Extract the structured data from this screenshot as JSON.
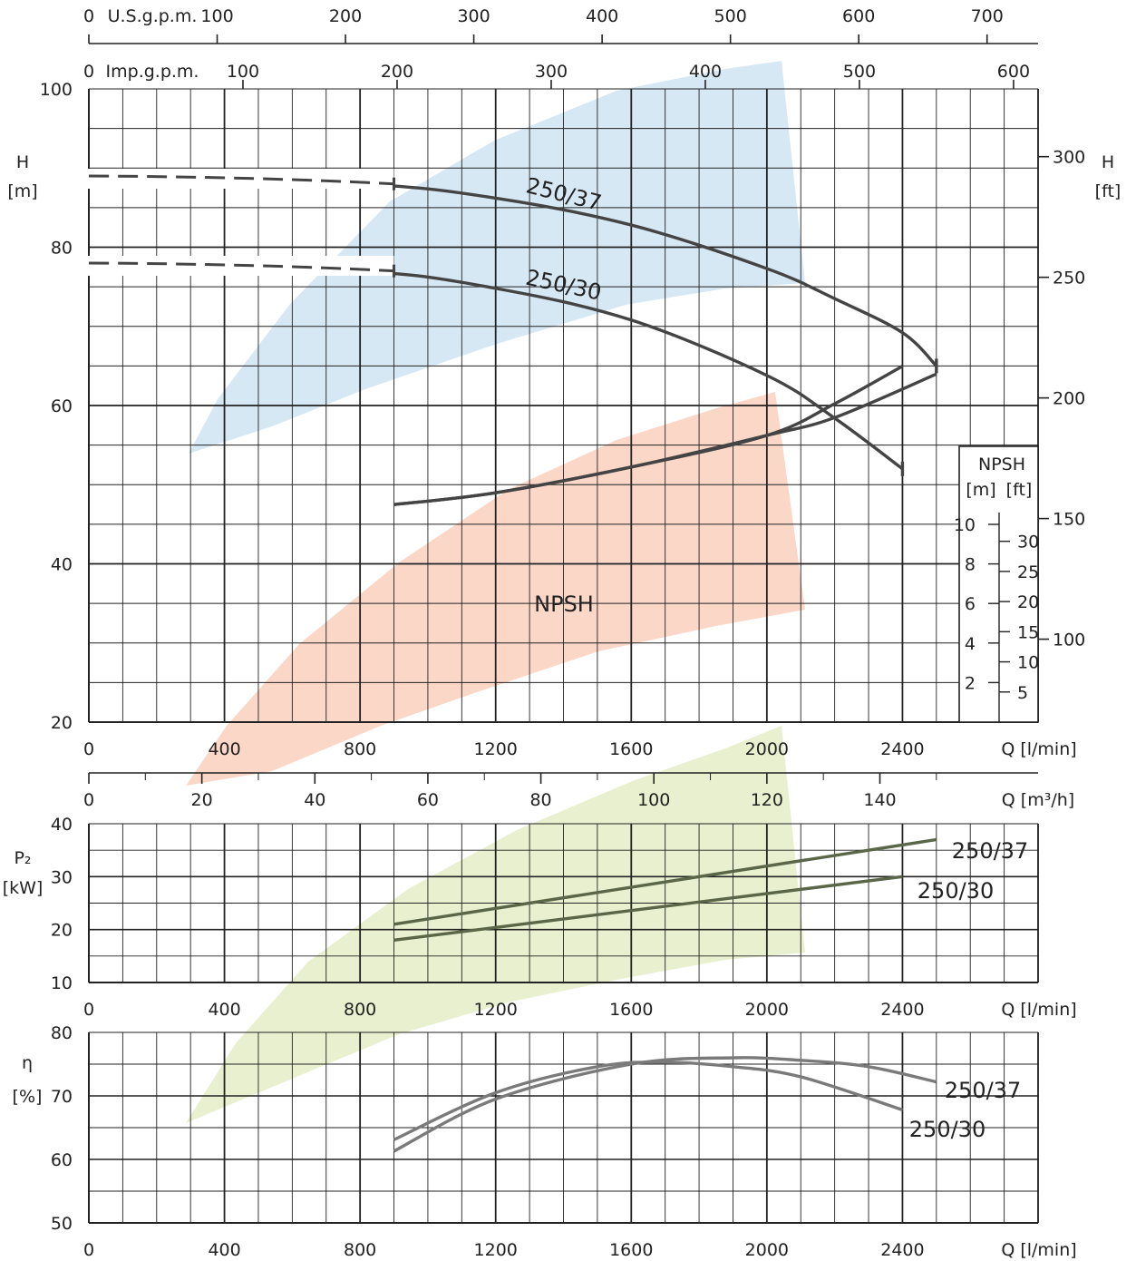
{
  "chart_data": [
    {
      "type": "line",
      "id": "head",
      "ylabel": "H",
      "yunit": "[m]",
      "y2label": "H",
      "y2unit": "[ft]",
      "xlabel": "Q [l/min]",
      "xlim": [
        0,
        2800
      ],
      "ylim": [
        20,
        100
      ],
      "xticks": [
        "0",
        "400",
        "800",
        "1200",
        "1600",
        "2000",
        "2400"
      ],
      "yticks": [
        "20",
        "40",
        "60",
        "80",
        "100"
      ],
      "y2ticks": [
        "100",
        "150",
        "200",
        "250",
        "300"
      ],
      "top_axes": [
        {
          "label": "U.S.g.p.m.",
          "zero": "0",
          "ticks": [
            "100",
            "200",
            "300",
            "400",
            "500",
            "600",
            "700"
          ]
        },
        {
          "label": "Imp.g.p.m.",
          "zero": "0",
          "ticks": [
            "100",
            "200",
            "300",
            "400",
            "500",
            "600"
          ]
        }
      ],
      "grid": true,
      "series": [
        {
          "name": "250/37",
          "x": [
            0,
            800,
            1200,
            1600,
            2000,
            2200,
            2400,
            2500
          ],
          "y": [
            89,
            88,
            86.2,
            82.8,
            77.3,
            73.5,
            69.2,
            65
          ]
        },
        {
          "name": "250/30",
          "x": [
            0,
            800,
            1200,
            1600,
            2000,
            2200,
            2400
          ],
          "y": [
            78,
            77,
            74.8,
            70.8,
            63.8,
            58.4,
            52
          ]
        }
      ],
      "npsh": {
        "label": "NPSH",
        "yunit_m": "[m]",
        "yunit_ft": "[ft]",
        "m_ticks": [
          "2",
          "4",
          "6",
          "8",
          "10"
        ],
        "ft_ticks": [
          "5",
          "10",
          "15",
          "20",
          "25",
          "30"
        ],
        "series": [
          {
            "x": [
              900,
              1200,
              1600,
              2000,
              2200,
              2400
            ],
            "y_m": [
              3.2,
              3.8,
              5.1,
              6.7,
              8.3,
              10.2
            ]
          },
          {
            "x": [
              900,
              1200,
              1600,
              2000,
              2200,
              2500
            ],
            "y_m": [
              3.2,
              3.8,
              5.1,
              6.7,
              7.6,
              9.8
            ]
          }
        ]
      }
    },
    {
      "type": "line",
      "id": "flow_m3h",
      "xlabel": "Q [m³/h]",
      "xticks": [
        "0",
        "20",
        "40",
        "60",
        "80",
        "100",
        "120",
        "140"
      ]
    },
    {
      "type": "line",
      "id": "power",
      "ylabel": "P₂",
      "yunit": "[kW]",
      "xlabel": "Q [l/min]",
      "xlim": [
        0,
        2800
      ],
      "ylim": [
        10,
        40
      ],
      "xticks": [
        "0",
        "400",
        "800",
        "1200",
        "1600",
        "2000",
        "2400"
      ],
      "yticks": [
        "10",
        "20",
        "30",
        "40"
      ],
      "grid": true,
      "series": [
        {
          "name": "250/37",
          "x": [
            900,
            2500
          ],
          "y": [
            21,
            37
          ]
        },
        {
          "name": "250/30",
          "x": [
            900,
            2400
          ],
          "y": [
            18,
            30
          ]
        }
      ]
    },
    {
      "type": "line",
      "id": "efficiency",
      "ylabel": "η",
      "yunit": "[%]",
      "xlabel": "Q [l/min]",
      "xlim": [
        0,
        2800
      ],
      "ylim": [
        50,
        80
      ],
      "xticks": [
        "0",
        "400",
        "800",
        "1200",
        "1600",
        "2000",
        "2400"
      ],
      "yticks": [
        "50",
        "60",
        "70",
        "80"
      ],
      "grid": true,
      "series": [
        {
          "name": "250/37",
          "x": [
            900,
            1200,
            1600,
            1900,
            2100,
            2300,
            2500
          ],
          "y": [
            61.3,
            69.5,
            75.0,
            76.0,
            75.6,
            74.6,
            72.2
          ]
        },
        {
          "name": "250/30",
          "x": [
            900,
            1200,
            1500,
            1700,
            1900,
            2100,
            2400
          ],
          "y": [
            63.1,
            70.5,
            74.6,
            75.3,
            74.6,
            73.0,
            67.8
          ]
        }
      ]
    }
  ],
  "colors": {
    "grid": "#222222",
    "curve": "#444444",
    "curve_light": "#7a7a7a",
    "band_head": "#d7e8f5",
    "band_npsh": "#fbd7c8",
    "band_power": "#e9f0cf",
    "curve_power": "#5b6648"
  }
}
